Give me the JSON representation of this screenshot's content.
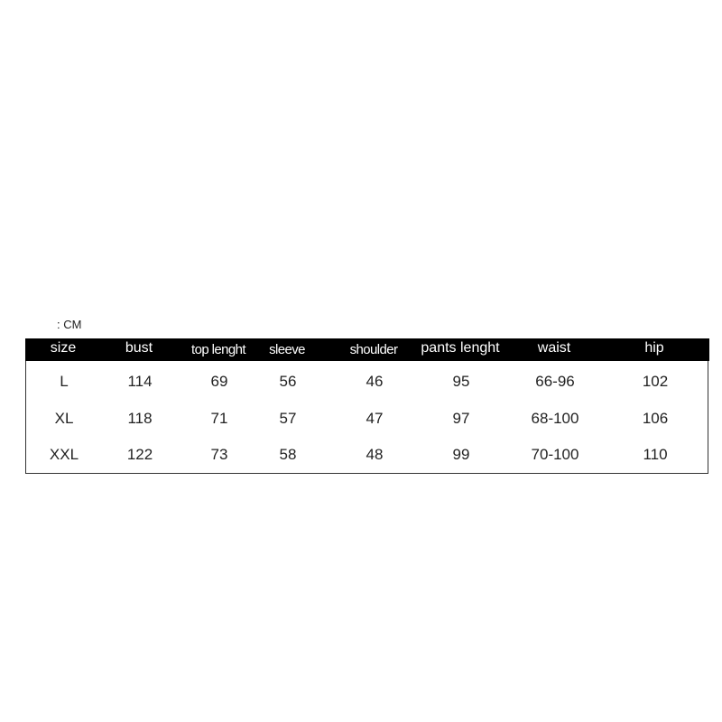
{
  "unit_label": ": CM",
  "table": {
    "headers": [
      "size",
      "bust",
      "top lenght",
      "sleeve",
      "shoulder",
      "pants lenght",
      "waist",
      "hip"
    ],
    "rows": [
      [
        "L",
        "114",
        "69",
        "56",
        "46",
        "95",
        "66-96",
        "102"
      ],
      [
        "XL",
        "118",
        "71",
        "57",
        "47",
        "97",
        "68-100",
        "106"
      ],
      [
        "XXL",
        "122",
        "73",
        "58",
        "48",
        "99",
        "70-100",
        "110"
      ]
    ]
  }
}
